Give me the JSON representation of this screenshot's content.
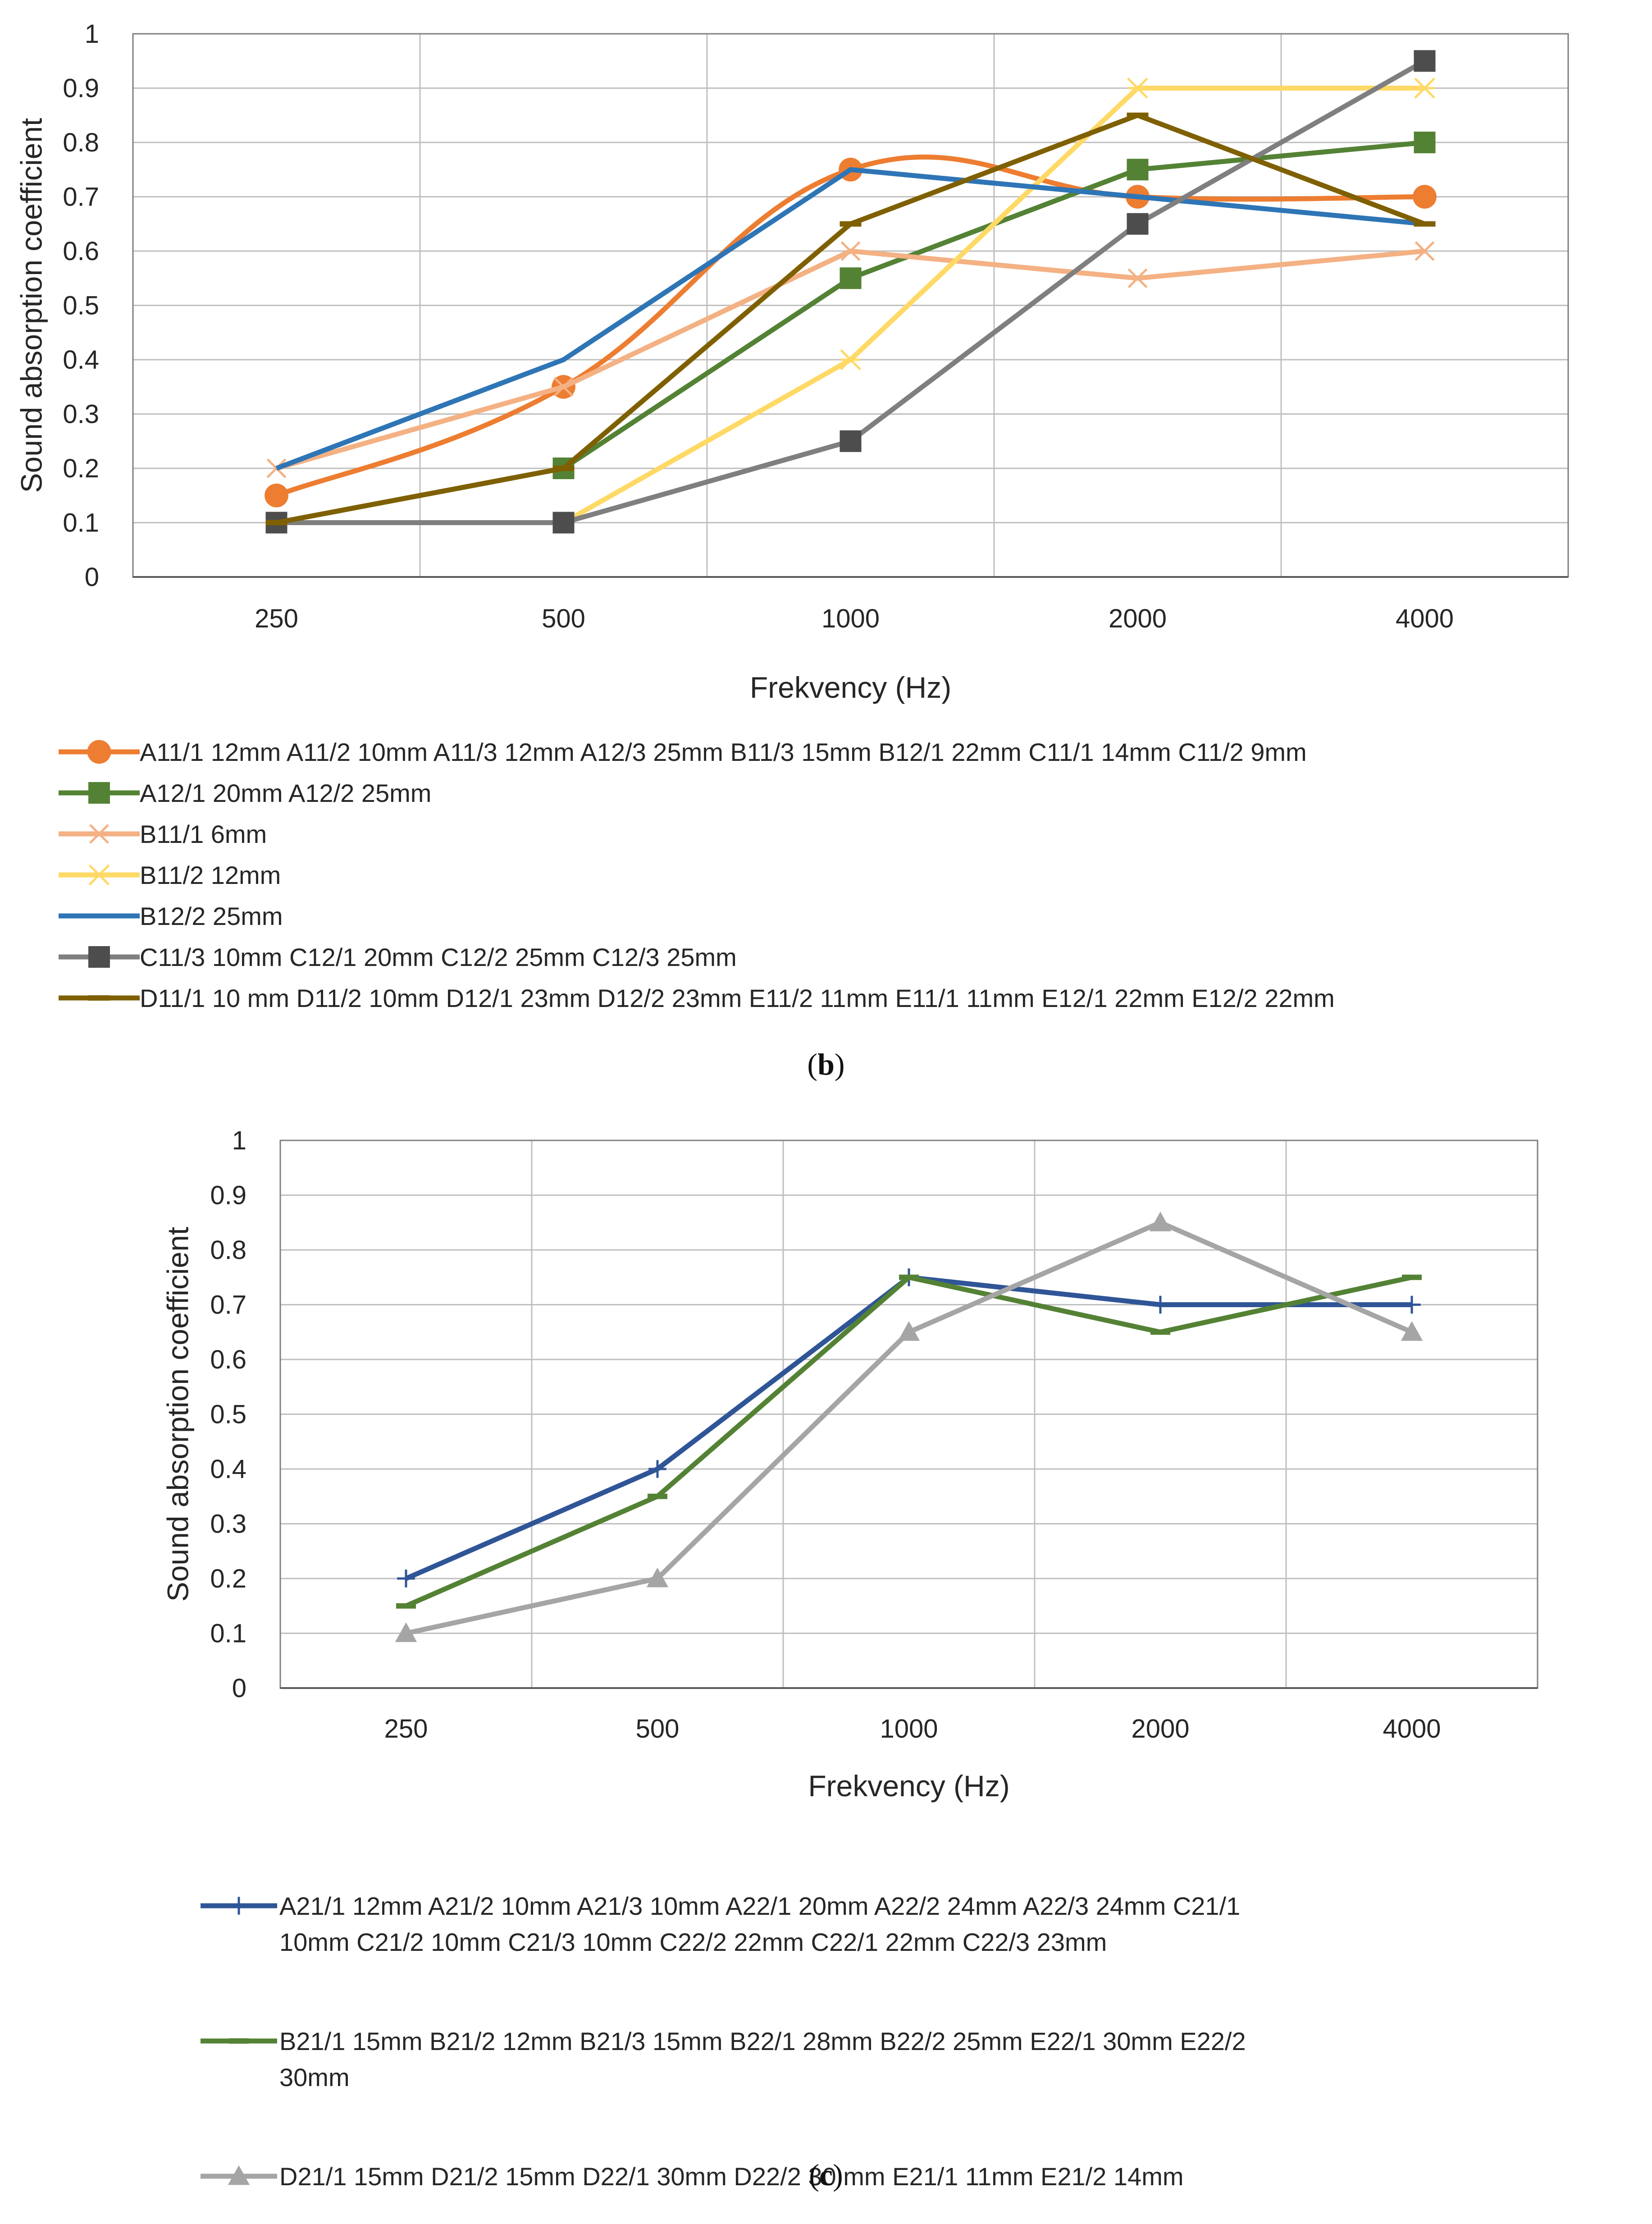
{
  "charts": [
    {
      "id": "b",
      "caption": {
        "open": "(",
        "letter": "b",
        "close": ")"
      },
      "ylabel": "Sound absorption coefficient",
      "xlabel": "Frekvency (Hz)",
      "x_ticks": [
        "250",
        "500",
        "1000",
        "2000",
        "4000"
      ],
      "y_ticks": [
        "0",
        "0.1",
        "0.2",
        "0.3",
        "0.4",
        "0.5",
        "0.6",
        "0.7",
        "0.8",
        "0.9",
        "1"
      ],
      "legend": [
        [
          "A11/1 12mm A11/2 10mm A11/3 12mm A12/3 25mm B11/3 15mm B12/1 22mm C11/1 14mm C11/2 9mm"
        ],
        [
          "A12/1 20mm A12/2 25mm"
        ],
        [
          "B11/1 6mm"
        ],
        [
          "B11/2 12mm"
        ],
        [
          "B12/2 25mm"
        ],
        [
          "C11/3 10mm C12/1 20mm C12/2 25mm C12/3 25mm"
        ],
        [
          "D11/1 10 mm D11/2 10mm D12/1 23mm D12/2 23mm E11/2 11mm E11/1 11mm E12/1 22mm E12/2 22mm"
        ]
      ]
    },
    {
      "id": "c",
      "caption": {
        "open": "(",
        "letter": "c",
        "close": ")"
      },
      "ylabel": "Sound absorption coefficient",
      "xlabel": "Frekvency (Hz)",
      "x_ticks": [
        "250",
        "500",
        "1000",
        "2000",
        "4000"
      ],
      "y_ticks": [
        "0",
        "0.1",
        "0.2",
        "0.3",
        "0.4",
        "0.5",
        "0.6",
        "0.7",
        "0.8",
        "0.9",
        "1"
      ],
      "legend": [
        [
          "A21/1 12mm A21/2 10mm A21/3 10mm A22/1 20mm A22/2 24mm A22/3 24mm C21/1",
          "10mm C21/2 10mm C21/3 10mm C22/2 22mm C22/1 22mm C22/3 23mm"
        ],
        [
          "B21/1 15mm B21/2 12mm B21/3 15mm B22/1 28mm B22/2 25mm E22/1 30mm E22/2",
          "30mm"
        ],
        [
          "D21/1 15mm D21/2 15mm D22/1 30mm D22/2 30 mm E21/1 11mm E21/2 14mm"
        ]
      ]
    }
  ],
  "chart_data": [
    {
      "type": "line",
      "title": "",
      "xlabel": "Frekvency (Hz)",
      "ylabel": "Sound absorption coefficient",
      "categories": [
        "250",
        "500",
        "1000",
        "2000",
        "4000"
      ],
      "ylim": [
        0,
        1
      ],
      "grid": true,
      "legend_position": "bottom",
      "series": [
        {
          "name": "A11/1 12mm A11/2 10mm A11/3 12mm A12/3 25mm B11/3 15mm B12/1 22mm C11/1 14mm C11/2 9mm",
          "values": [
            0.15,
            0.35,
            0.75,
            0.7,
            0.7
          ],
          "color": "#ED7D31",
          "marker": "circle",
          "smooth": true
        },
        {
          "name": "A12/1 20mm A12/2 25mm",
          "values": [
            0.1,
            0.2,
            0.55,
            0.75,
            0.8
          ],
          "color": "#548235",
          "marker": "square",
          "smooth": false
        },
        {
          "name": "B11/1 6mm",
          "values": [
            0.2,
            0.35,
            0.6,
            0.55,
            0.6
          ],
          "color": "#F4B183",
          "marker": "x",
          "smooth": false
        },
        {
          "name": "B11/2 12mm",
          "values": [
            null,
            0.1,
            0.4,
            0.9,
            0.9
          ],
          "color": "#FFD966",
          "marker": "star",
          "smooth": false
        },
        {
          "name": "B12/2 25mm",
          "values": [
            0.2,
            0.4,
            0.75,
            0.7,
            0.65
          ],
          "color": "#2E75B6",
          "marker": "none",
          "smooth": false
        },
        {
          "name": "C11/3 10mm C12/1 20mm C12/2 25mm C12/3 25mm",
          "values": [
            0.1,
            0.1,
            0.25,
            0.65,
            0.95
          ],
          "color": "#7F7F7F",
          "marker": "square-dark",
          "smooth": false
        },
        {
          "name": "D11/1 10 mm D11/2 10mm D12/1 23mm D12/2 23mm E11/2 11mm E11/1 11mm E12/1 22mm E12/2 22mm",
          "values": [
            0.1,
            0.2,
            0.65,
            0.85,
            0.65
          ],
          "color": "#7F6000",
          "marker": "dash",
          "smooth": false
        }
      ]
    },
    {
      "type": "line",
      "title": "",
      "xlabel": "Frekvency (Hz)",
      "ylabel": "Sound absorption coefficient",
      "categories": [
        "250",
        "500",
        "1000",
        "2000",
        "4000"
      ],
      "ylim": [
        0,
        1
      ],
      "grid": true,
      "legend_position": "bottom",
      "series": [
        {
          "name": "A21/1 12mm A21/2 10mm A21/3 10mm A22/1 20mm A22/2 24mm A22/3 24mm C21/1 10mm C21/2 10mm C21/3 10mm C22/2 22mm C22/1 22mm C22/3 23mm",
          "values": [
            0.2,
            0.4,
            0.75,
            0.7,
            0.7
          ],
          "color": "#2F5597",
          "marker": "plus",
          "smooth": false
        },
        {
          "name": "B21/1 15mm B21/2 12mm B21/3 15mm B22/1 28mm B22/2 25mm E22/1 30mm E22/2 30mm",
          "values": [
            0.15,
            0.35,
            0.75,
            0.65,
            0.75
          ],
          "color": "#548235",
          "marker": "dash",
          "smooth": false
        },
        {
          "name": "D21/1 15mm D21/2 15mm D22/1 30mm D22/2 30 mm E21/1 11mm E21/2 14mm",
          "values": [
            0.1,
            0.2,
            0.65,
            0.85,
            0.65
          ],
          "color": "#A5A5A5",
          "marker": "triangle",
          "smooth": false
        }
      ]
    }
  ]
}
